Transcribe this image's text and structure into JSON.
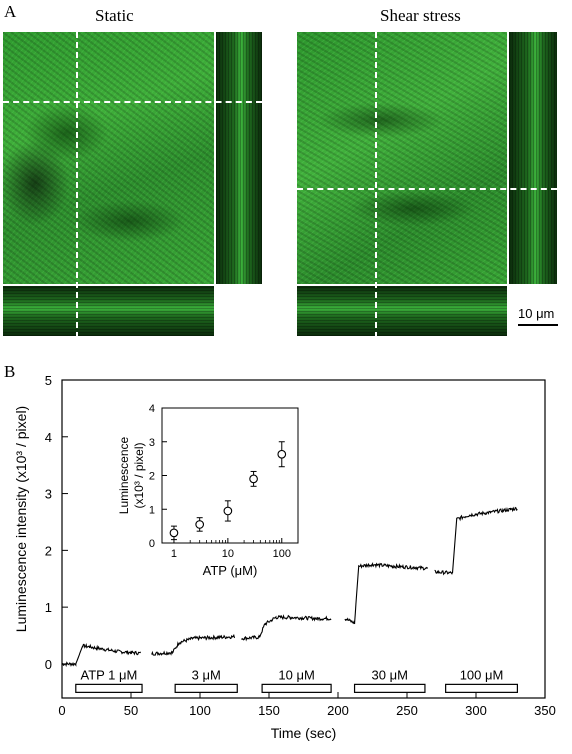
{
  "panel_a": {
    "letter": "A",
    "left_title": "Static",
    "right_title": "Shear stress",
    "scale_bar_label": "10 μm"
  },
  "panel_b": {
    "letter": "B"
  },
  "chart_data": [
    {
      "type": "line",
      "xlabel": "Time (sec)",
      "ylabel": "Luminescence intensity (x10³ / pixel)",
      "xlim": [
        0,
        350
      ],
      "ylim": [
        -0.6,
        5
      ],
      "x_ticks": [
        "0",
        "50",
        "100",
        "150",
        "200",
        "250",
        "300",
        "350"
      ],
      "y_ticks": [
        "0",
        "1",
        "2",
        "3",
        "4",
        "5"
      ],
      "segments": [
        {
          "x": [
            0,
            10,
            15,
            20,
            30,
            40,
            50,
            57
          ],
          "y": [
            0,
            0,
            0.32,
            0.3,
            0.26,
            0.22,
            0.2,
            0.19
          ]
        },
        {
          "x": [
            65,
            80,
            85,
            95,
            105,
            115,
            125
          ],
          "y": [
            0.18,
            0.2,
            0.38,
            0.45,
            0.46,
            0.47,
            0.48
          ]
        },
        {
          "x": [
            130,
            143,
            147,
            155,
            165,
            175,
            185,
            195
          ],
          "y": [
            0.45,
            0.47,
            0.7,
            0.82,
            0.82,
            0.81,
            0.8,
            0.8
          ]
        },
        {
          "x": [
            205,
            212,
            215,
            225,
            240,
            255,
            265
          ],
          "y": [
            0.8,
            0.72,
            1.72,
            1.75,
            1.72,
            1.7,
            1.68
          ]
        },
        {
          "x": [
            270,
            283,
            286,
            295,
            310,
            325,
            330
          ],
          "y": [
            1.62,
            1.6,
            2.55,
            2.62,
            2.67,
            2.72,
            2.74
          ]
        }
      ],
      "stimuli": [
        {
          "label": "ATP 1 μM",
          "start": 10,
          "end": 58
        },
        {
          "label": "3 μM",
          "start": 82,
          "end": 127
        },
        {
          "label": "10 μM",
          "start": 145,
          "end": 195
        },
        {
          "label": "30 μM",
          "start": 212,
          "end": 263
        },
        {
          "label": "100 μM",
          "start": 278,
          "end": 330
        }
      ]
    },
    {
      "type": "scatter",
      "xlabel": "ATP (μM)",
      "ylabel": "Luminescence (x10³ / pixel)",
      "x_scale": "log",
      "xlim": [
        0.6,
        200
      ],
      "ylim": [
        0,
        4
      ],
      "x_ticks": [
        "1",
        "10",
        "100"
      ],
      "y_ticks": [
        "0",
        "1",
        "2",
        "3",
        "4"
      ],
      "points": [
        {
          "x": 1,
          "y": 0.3,
          "err": 0.2
        },
        {
          "x": 3,
          "y": 0.55,
          "err": 0.2
        },
        {
          "x": 10,
          "y": 0.95,
          "err": 0.3
        },
        {
          "x": 30,
          "y": 1.9,
          "err": 0.22
        },
        {
          "x": 100,
          "y": 2.63,
          "err": 0.37
        }
      ]
    }
  ]
}
